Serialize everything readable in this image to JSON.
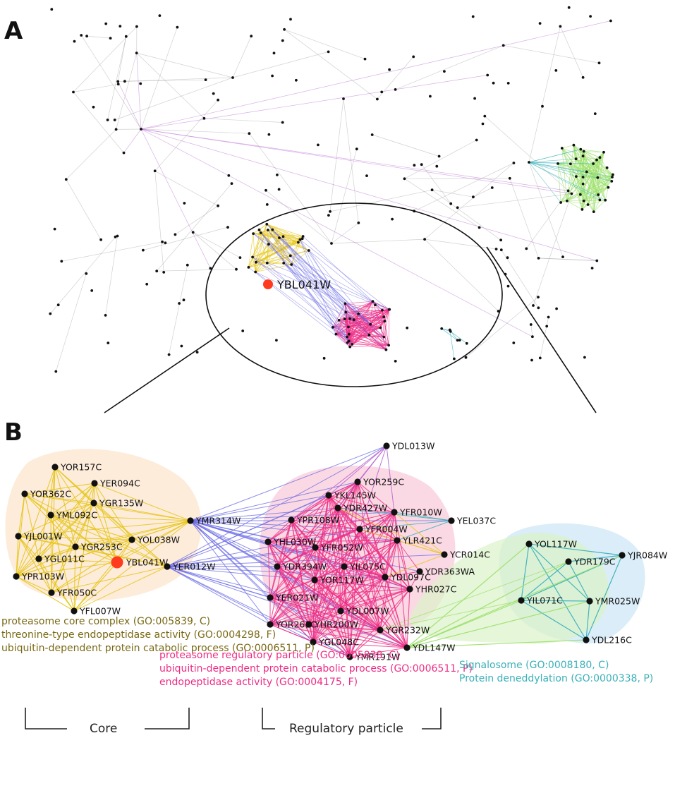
{
  "panels": {
    "a": "A",
    "b": "B"
  },
  "colors": {
    "core": "#e6c619",
    "core_text": "#7a6a16",
    "regulatory": "#ee2c85",
    "signalosome": "#3bb1b8",
    "inter": "#6a6ae6",
    "deneddylation_link": "#9be06a",
    "bridge": "#b45fd0",
    "highlight": "#ff3b1f"
  },
  "panel_a": {
    "highlight_label": "YBL041W"
  },
  "panel_b": {
    "highlight": "YBL041W",
    "core_nodes": [
      "YOR157C",
      "YOR362C",
      "YER094C",
      "YGR135W",
      "YML092C",
      "YJL001W",
      "YGR253C",
      "YOL038W",
      "YGL011C",
      "YPR103W",
      "YFR050C",
      "YFL007W",
      "YBL041W"
    ],
    "bridge_nodes": [
      "YMR314W",
      "YER012W"
    ],
    "regulatory_nodes": [
      "YDL013W",
      "YOR259C",
      "YKL145W",
      "YDR427W",
      "YFR010W",
      "YPR108W",
      "YFR004W",
      "YHL030W",
      "YFR052W",
      "YLR421C",
      "YDR394W",
      "YIL075C",
      "YOR117W",
      "YDL097C",
      "YER021W",
      "YHR027C",
      "YDL007W",
      "YHR200W",
      "YOR261C",
      "YGR232W",
      "YGL048C",
      "YMR191W",
      "YDL147W",
      "YEL037C",
      "YCR014C",
      "YDR363WA"
    ],
    "signalosome_nodes": [
      "YOL117W",
      "YDR179C",
      "YJR084W",
      "YIL071C",
      "YMR025W",
      "YDL216C"
    ]
  },
  "annotations": {
    "core": [
      "proteasome core complex (GO:005839, C)",
      "threonine-type endopeptidase activity (GO:0004298, F)",
      "ubiquitin-dependent protein catabolic process (GO:0006511, P)"
    ],
    "regulatory": [
      "proteasome regulatory particle (GO:0005838, C)",
      "ubiquitin-dependent protein catabolic process (GO:0006511, P)",
      "endopeptidase activity (GO:0004175, F)"
    ],
    "signalosome": [
      "Signalosome (GO:0008180, C)",
      "Protein deneddylation (GO:0000338, P)"
    ]
  },
  "brackets": {
    "core": "Core",
    "regulatory": "Regulatory particle"
  }
}
